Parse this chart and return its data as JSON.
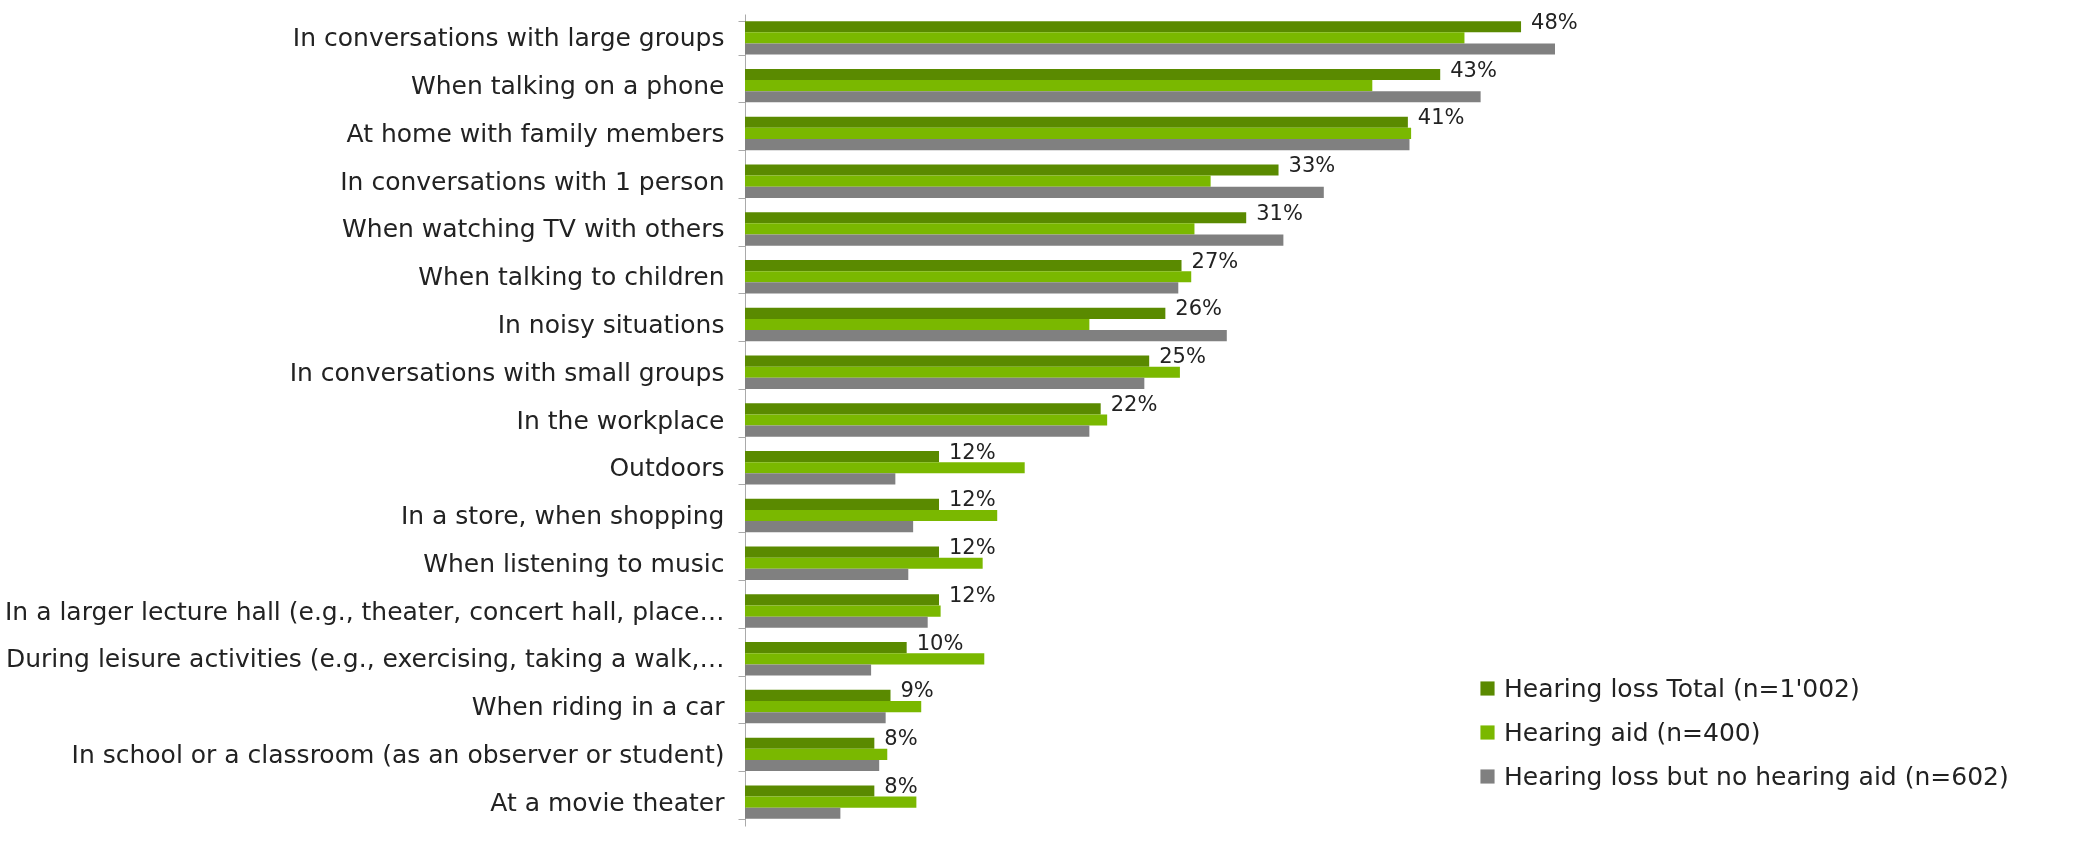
{
  "chart_data": {
    "type": "bar",
    "orientation": "horizontal",
    "categories": [
      "In conversations with large groups",
      "When talking on a phone",
      "At home with family members",
      "In conversations with 1 person",
      "When watching TV with others",
      "When talking to children",
      "In noisy situations",
      "In conversations with small groups",
      "In the workplace",
      "Outdoors",
      "In a store, when shopping",
      "When listening to music",
      "In a larger lecture hall (e.g., theater, concert hall, place…",
      "During leisure activities (e.g., exercising, taking a walk,…",
      "When riding in a car",
      "In school or a classroom (as an observer or student)",
      "At a movie theater"
    ],
    "series": [
      {
        "name": "Hearing loss Total (n=1'002)",
        "color": "#5a8a00",
        "values": [
          48,
          43,
          41,
          33,
          31,
          27,
          26,
          25,
          22,
          12,
          12,
          12,
          12,
          10,
          9,
          8,
          8
        ],
        "value_labels": [
          "48%",
          "43%",
          "41%",
          "33%",
          "31%",
          "27%",
          "26%",
          "25%",
          "22%",
          "12%",
          "12%",
          "12%",
          "12%",
          "10%",
          "9%",
          "8%",
          "8%"
        ]
      },
      {
        "name": "Hearing aid (n=400)",
        "color": "#7ab800",
        "values": [
          44.5,
          38.8,
          41.2,
          28.8,
          27.8,
          27.6,
          21.3,
          26.9,
          22.4,
          17.3,
          15.6,
          14.7,
          12.1,
          14.8,
          10.9,
          8.8,
          10.6
        ]
      },
      {
        "name": "Hearing loss but no hearing aid (n=602)",
        "color": "#808080",
        "values": [
          50.1,
          45.5,
          41.1,
          35.8,
          33.3,
          26.8,
          29.8,
          24.7,
          21.3,
          9.3,
          10.4,
          10.1,
          11.3,
          7.8,
          8.7,
          8.3,
          5.9
        ]
      }
    ],
    "tick_labels": "y",
    "legend": "bottom right"
  }
}
